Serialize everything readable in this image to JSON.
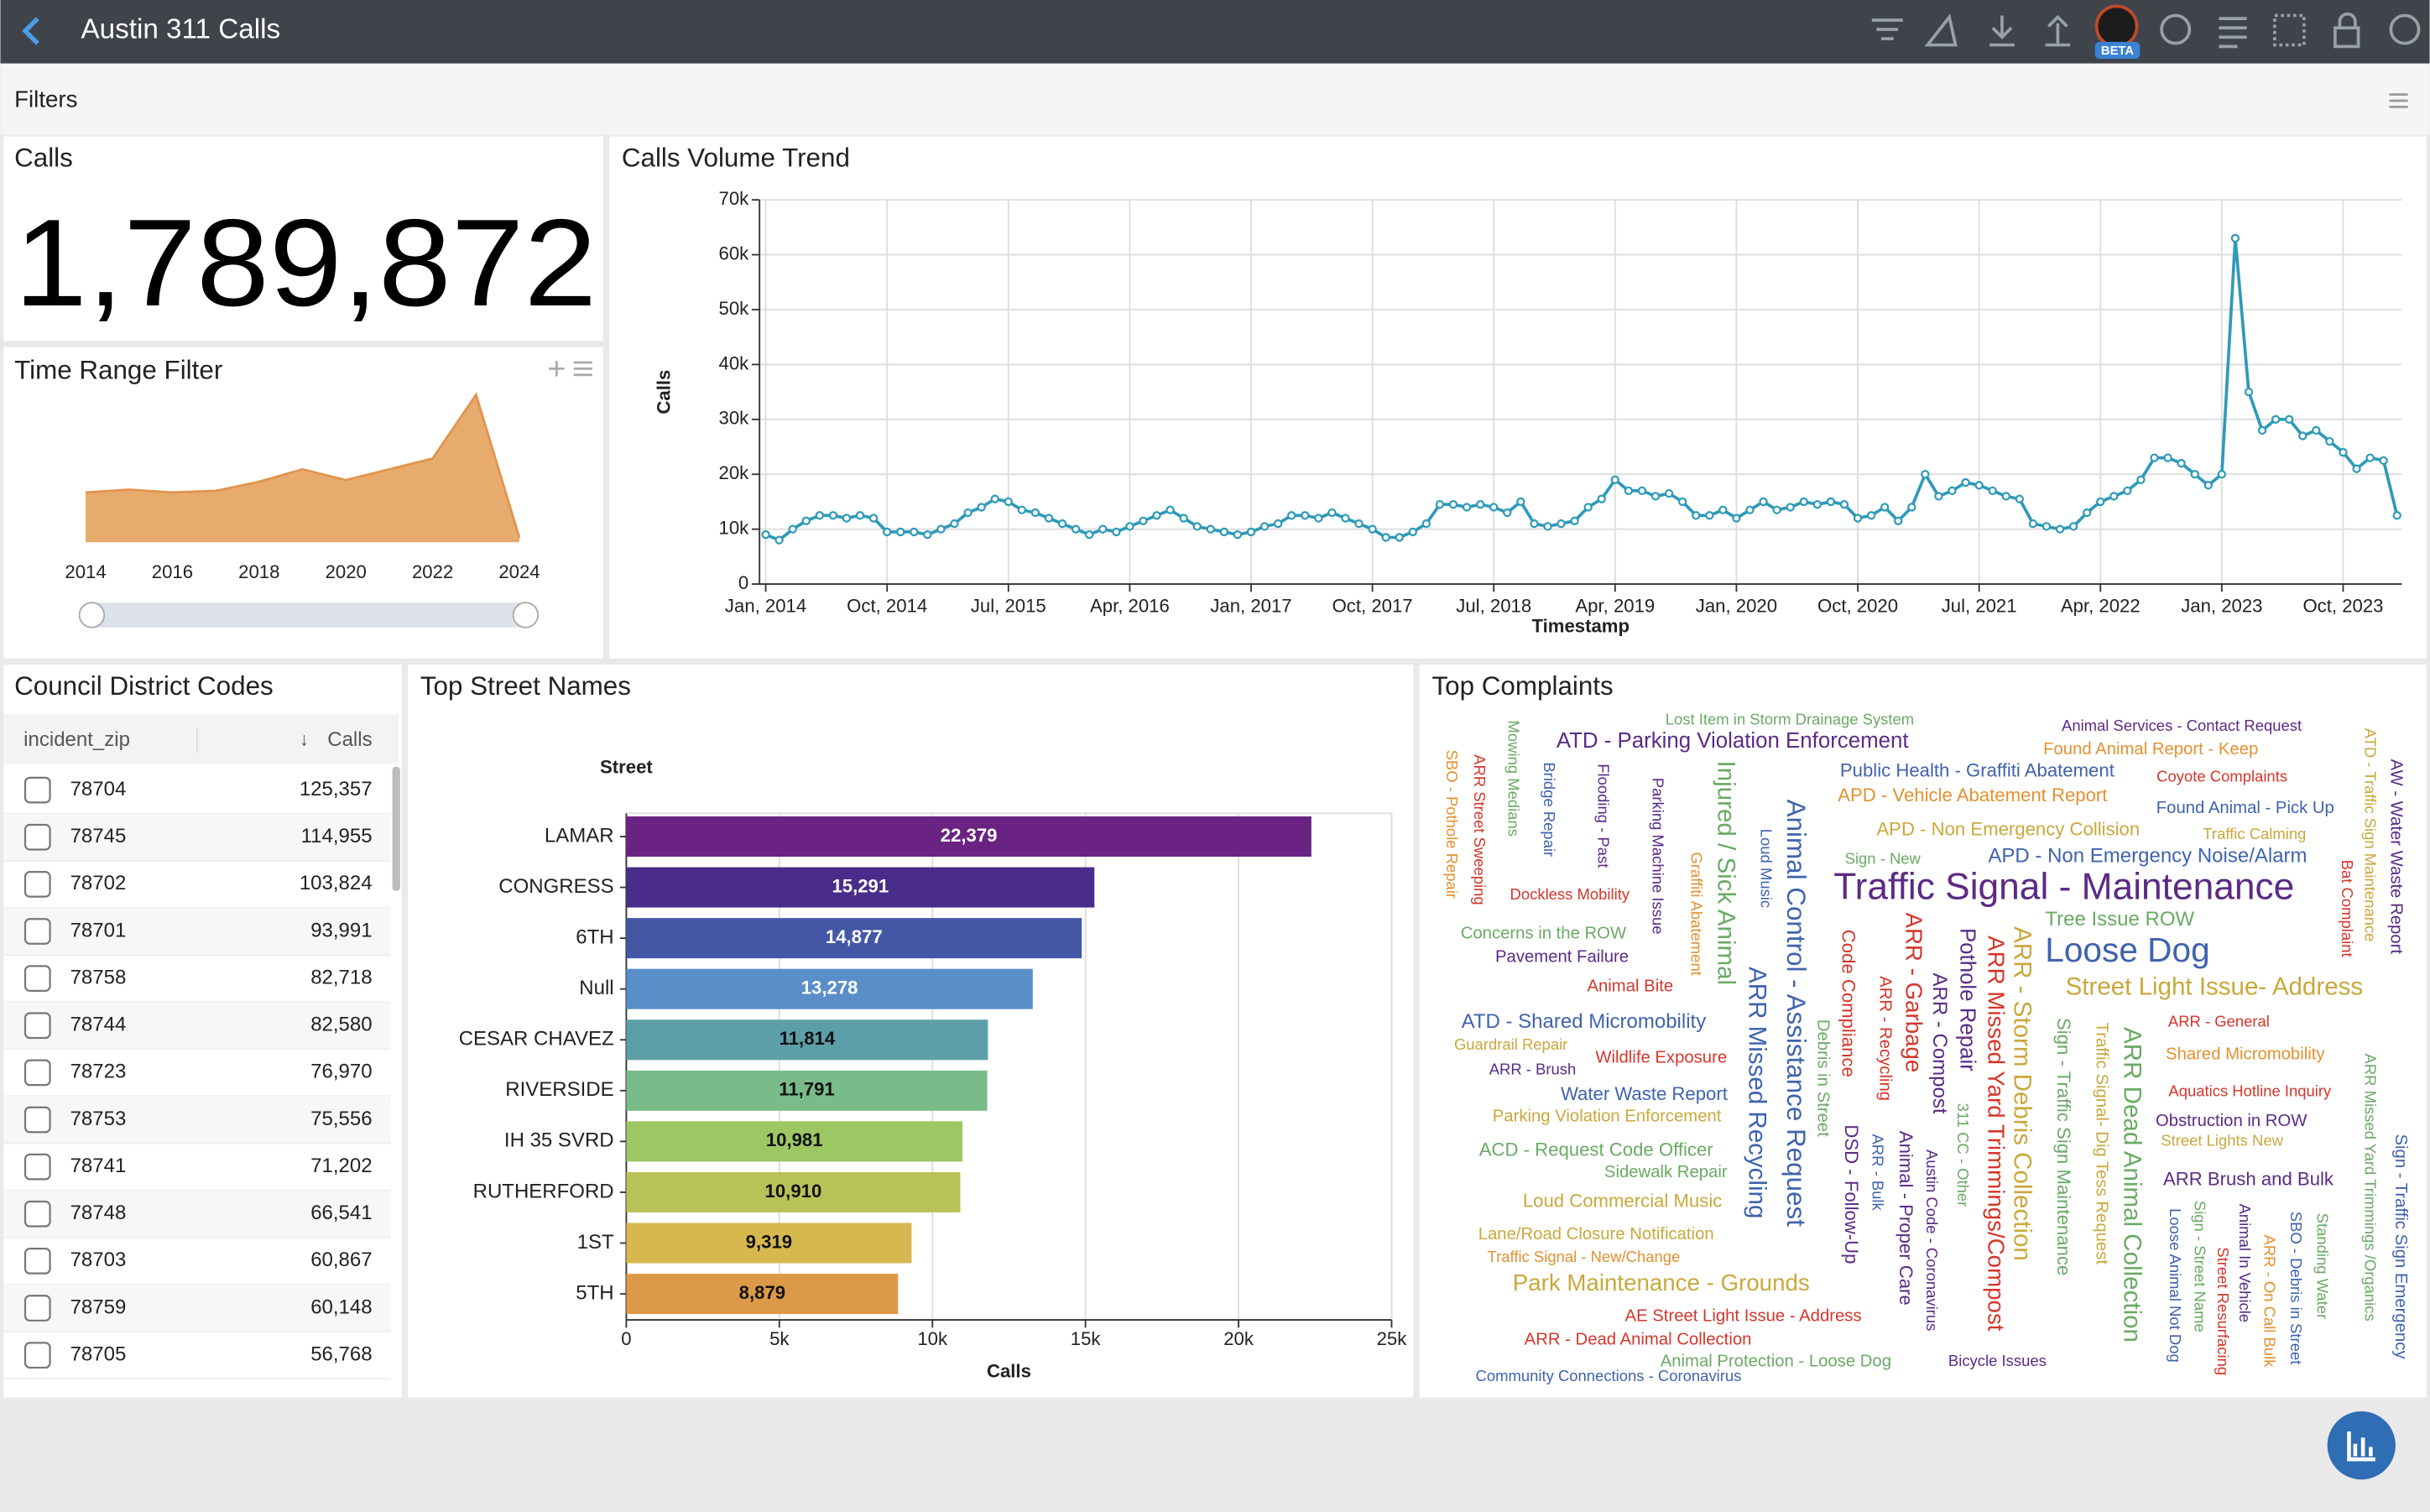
{
  "header": {
    "title": "Austin 311 Calls",
    "beta_badge": "BETA"
  },
  "filters": {
    "title": "Filters"
  },
  "kpi": {
    "title": "Calls",
    "value": "1,789,872"
  },
  "table": {
    "title": "Council District Codes",
    "columns": [
      "incident_zip",
      "Calls"
    ],
    "sort_indicator": "↓",
    "rows": [
      [
        "78704",
        "125,357"
      ],
      [
        "78745",
        "114,955"
      ],
      [
        "78702",
        "103,824"
      ],
      [
        "78701",
        "93,991"
      ],
      [
        "78758",
        "82,718"
      ],
      [
        "78744",
        "82,580"
      ],
      [
        "78723",
        "76,970"
      ],
      [
        "78753",
        "75,556"
      ],
      [
        "78741",
        "71,202"
      ],
      [
        "78748",
        "66,541"
      ],
      [
        "78703",
        "60,867"
      ],
      [
        "78759",
        "60,148"
      ],
      [
        "78705",
        "56,768"
      ]
    ]
  },
  "word_cloud": {
    "title": "Top Complaints",
    "words": [
      "Lost Item in Storm Drainage System",
      "Animal Services - Contact Request",
      "ATD - Parking Violation Enforcement",
      "Found Animal Report - Keep",
      "Public Health - Graffiti Abatement",
      "Coyote Complaints",
      "APD - Vehicle Abatement Report",
      "Found Animal - Pick Up",
      "APD - Non Emergency Collision",
      "Traffic Calming",
      "Sign - New",
      "APD - Non Emergency Noise/Alarm",
      "Traffic Signal - Maintenance",
      "Dockless Mobility",
      "Tree Issue ROW",
      "Concerns in the ROW",
      "Loose Dog",
      "Pavement Failure",
      "Street Light Issue- Address",
      "Animal Bite",
      "ATD - Shared Micromobility",
      "ARR - General",
      "Guardrail Repair",
      "Wildlife Exposure",
      "Shared Micromobility",
      "ARR - Brush",
      "Water Waste Report",
      "Aquatics Hotline Inquiry",
      "Parking Violation Enforcement",
      "Obstruction in ROW",
      "Street Lights New",
      "ACD - Request Code Officer",
      "Sidewalk Repair",
      "ARR Brush and Bulk",
      "Loud Commercial Music",
      "Lane/Road Closure Notification",
      "Traffic Signal - New/Change",
      "Park Maintenance - Grounds",
      "AE Street Light Issue - Address",
      "ARR - Dead Animal Collection",
      "Animal Protection - Loose Dog",
      "Bicycle Issues",
      "Community Connections - Coronavirus",
      "Mowing Medians",
      "SBO - Pothole Repair",
      "ARR Street Sweeping",
      "Bridge Repair",
      "Flooding - Past",
      "Parking Machine Issue",
      "Injured / Sick Animal",
      "Graffiti Abatement",
      "Loud Music",
      "Animal Control - Assistance Request",
      "ARR Missed Recycling",
      "Code Compliance",
      "Debris in Street",
      "ARR - Garbage",
      "ARR - Recycling",
      "ARR - Compost",
      "Pothole Repair",
      "ARR Missed Yard Trimmings/Compost",
      "ARR - Storm Debris Collection",
      "311 CC - Other",
      "DSD - Follow-Up",
      "ARR - Bulk",
      "Animal - Proper Care",
      "Austin Code - Coronavirus",
      "Sign - Traffic Sign Maintenance",
      "Traffic Signal- Dig Tess Request",
      "ARR Dead Animal Collection",
      "ATD - Traffic Sign Maintenance",
      "AW - Water Waste Report",
      "Bat Complaint",
      "ARR Missed Yard Trimmings /Organics",
      "Sign - Traffic Sign Emergency",
      "Sign - Street Name",
      "Loose Animal Not Dog",
      "Animal In Vehicle",
      "Street Resurfacing",
      "ARR - On Call Bulk",
      "SBO - Debris in Street",
      "Standing Water"
    ]
  },
  "chart_data": [
    {
      "type": "area",
      "title": "Time Range Filter",
      "x": [
        2014,
        2015,
        2016,
        2017,
        2018,
        2019,
        2020,
        2021,
        2022,
        2023,
        2024
      ],
      "values": [
        120000,
        127000,
        120000,
        124000,
        146000,
        176000,
        150000,
        176000,
        202000,
        356000,
        11000
      ],
      "xlim": [
        2014,
        2024
      ],
      "xticks": [
        2014,
        2016,
        2018,
        2020,
        2022,
        2024
      ],
      "ylim": [
        0,
        400000
      ],
      "color": "#e8ab6e"
    },
    {
      "type": "line",
      "title": "Calls Volume Trend",
      "x_label": "Timestamp",
      "y_label": "Calls",
      "x": [
        "2014-01",
        "2014-02",
        "2014-03",
        "2014-04",
        "2014-05",
        "2014-06",
        "2014-07",
        "2014-08",
        "2014-09",
        "2014-10",
        "2014-11",
        "2014-12",
        "2015-01",
        "2015-02",
        "2015-03",
        "2015-04",
        "2015-05",
        "2015-06",
        "2015-07",
        "2015-08",
        "2015-09",
        "2015-10",
        "2015-11",
        "2015-12",
        "2016-01",
        "2016-02",
        "2016-03",
        "2016-04",
        "2016-05",
        "2016-06",
        "2016-07",
        "2016-08",
        "2016-09",
        "2016-10",
        "2016-11",
        "2016-12",
        "2017-01",
        "2017-02",
        "2017-03",
        "2017-04",
        "2017-05",
        "2017-06",
        "2017-07",
        "2017-08",
        "2017-09",
        "2017-10",
        "2017-11",
        "2017-12",
        "2018-01",
        "2018-02",
        "2018-03",
        "2018-04",
        "2018-05",
        "2018-06",
        "2018-07",
        "2018-08",
        "2018-09",
        "2018-10",
        "2018-11",
        "2018-12",
        "2019-01",
        "2019-02",
        "2019-03",
        "2019-04",
        "2019-05",
        "2019-06",
        "2019-07",
        "2019-08",
        "2019-09",
        "2019-10",
        "2019-11",
        "2019-12",
        "2020-01",
        "2020-02",
        "2020-03",
        "2020-04",
        "2020-05",
        "2020-06",
        "2020-07",
        "2020-08",
        "2020-09",
        "2020-10",
        "2020-11",
        "2020-12",
        "2021-01",
        "2021-02",
        "2021-03",
        "2021-04",
        "2021-05",
        "2021-06",
        "2021-07",
        "2021-08",
        "2021-09",
        "2021-10",
        "2021-11",
        "2021-12",
        "2022-01",
        "2022-02",
        "2022-03",
        "2022-04",
        "2022-05",
        "2022-06",
        "2022-07",
        "2022-08",
        "2022-09",
        "2022-10",
        "2022-11",
        "2022-12",
        "2023-01",
        "2023-02",
        "2023-03",
        "2023-04",
        "2023-05",
        "2023-06",
        "2023-07",
        "2023-08",
        "2023-09",
        "2023-10",
        "2023-11",
        "2023-12",
        "2024-01",
        "2024-02"
      ],
      "values": [
        9000,
        8000,
        10000,
        11500,
        12500,
        12500,
        12000,
        12500,
        12000,
        9500,
        9500,
        9500,
        9000,
        10000,
        11000,
        13000,
        14000,
        15500,
        15000,
        13500,
        13000,
        12000,
        11000,
        10000,
        9000,
        10000,
        9500,
        10500,
        11500,
        12500,
        13500,
        12000,
        10500,
        10000,
        9500,
        9000,
        9500,
        10500,
        11000,
        12500,
        12500,
        12000,
        13000,
        12000,
        11000,
        10000,
        8500,
        8500,
        9500,
        11000,
        14500,
        14500,
        14000,
        14500,
        14000,
        13000,
        15000,
        11000,
        10500,
        11000,
        11500,
        14000,
        15500,
        19000,
        17000,
        17000,
        16000,
        16500,
        15000,
        12500,
        12500,
        13500,
        12000,
        13500,
        15000,
        13500,
        14000,
        15000,
        14500,
        15000,
        14500,
        12000,
        12500,
        14000,
        11500,
        14000,
        20000,
        16000,
        17000,
        18500,
        18000,
        17000,
        16000,
        15500,
        11000,
        10500,
        10000,
        10500,
        13000,
        15000,
        16000,
        17000,
        19000,
        23000,
        23000,
        22000,
        20000,
        18000,
        20000,
        63000,
        35000,
        28000,
        30000,
        30000,
        27000,
        28000,
        26000,
        24000,
        21000,
        23000,
        22500,
        12500
      ],
      "xlim": [
        "2014-01",
        "2024-02"
      ],
      "xticks": [
        {
          "value": "2014-01",
          "label": "Jan, 2014"
        },
        {
          "value": "2014-10",
          "label": "Oct, 2014"
        },
        {
          "value": "2015-07",
          "label": "Jul, 2015"
        },
        {
          "value": "2016-04",
          "label": "Apr, 2016"
        },
        {
          "value": "2017-01",
          "label": "Jan, 2017"
        },
        {
          "value": "2017-10",
          "label": "Oct, 2017"
        },
        {
          "value": "2018-07",
          "label": "Jul, 2018"
        },
        {
          "value": "2019-04",
          "label": "Apr, 2019"
        },
        {
          "value": "2020-01",
          "label": "Jan, 2020"
        },
        {
          "value": "2020-10",
          "label": "Oct, 2020"
        },
        {
          "value": "2021-07",
          "label": "Jul, 2021"
        },
        {
          "value": "2022-04",
          "label": "Apr, 2022"
        },
        {
          "value": "2023-01",
          "label": "Jan, 2023"
        },
        {
          "value": "2023-10",
          "label": "Oct, 2023"
        }
      ],
      "ylim": [
        0,
        70000
      ],
      "yticks": [
        0,
        {
          "value": 10000,
          "label": "10k"
        },
        {
          "value": 20000,
          "label": "20k"
        },
        {
          "value": 30000,
          "label": "30k"
        },
        {
          "value": 40000,
          "label": "40k"
        },
        {
          "value": 50000,
          "label": "50k"
        },
        {
          "value": 60000,
          "label": "60k"
        },
        {
          "value": 70000,
          "label": "70k"
        }
      ],
      "grid": true,
      "color": "#2f9ab8"
    },
    {
      "type": "bar",
      "orientation": "horizontal",
      "title": "Top Street Names",
      "x_label": "Calls",
      "y_label": "Street",
      "categories": [
        "LAMAR",
        "CONGRESS",
        "6TH",
        "Null",
        "CESAR CHAVEZ",
        "RIVERSIDE",
        "IH 35 SVRD",
        "RUTHERFORD",
        "1ST",
        "5TH"
      ],
      "values": [
        22379,
        15291,
        14877,
        13278,
        11814,
        11791,
        10981,
        10910,
        9319,
        8879
      ],
      "value_labels": [
        "22,379",
        "15,291",
        "14,877",
        "13,278",
        "11,814",
        "11,791",
        "10,981",
        "10,910",
        "9,319",
        "8,879"
      ],
      "colors": [
        "#6b2383",
        "#4a2c8a",
        "#4457a7",
        "#5a8ec8",
        "#5d9fa9",
        "#79bc8a",
        "#9cc763",
        "#b8c357",
        "#d6b84e",
        "#dc9a48"
      ],
      "xlim": [
        0,
        25000
      ],
      "xticks": [
        0,
        {
          "value": 5000,
          "label": "5k"
        },
        {
          "value": 10000,
          "label": "10k"
        },
        {
          "value": 15000,
          "label": "15k"
        },
        {
          "value": 20000,
          "label": "20k"
        },
        {
          "value": 25000,
          "label": "25k"
        }
      ],
      "grid": true
    }
  ]
}
